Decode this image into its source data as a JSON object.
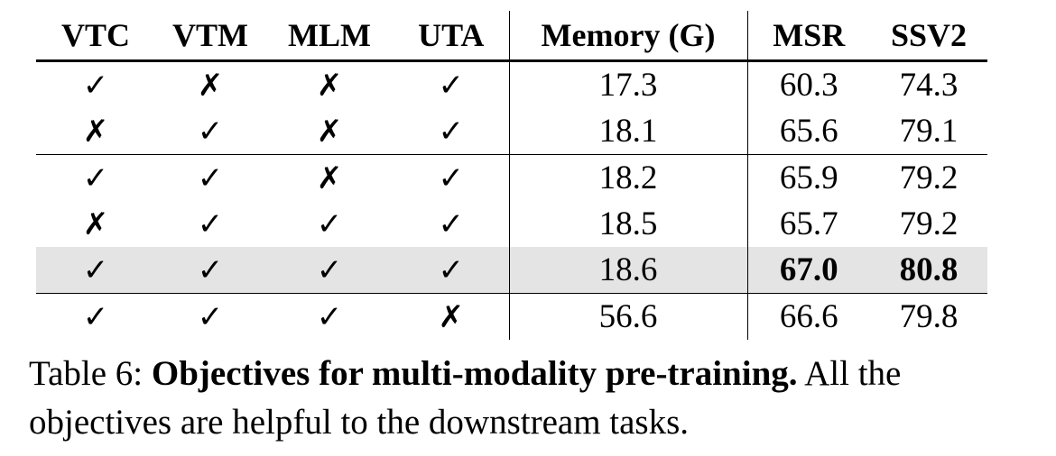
{
  "table": {
    "headers": [
      "VTC",
      "VTM",
      "MLM",
      "UTA",
      "Memory (G)",
      "MSR",
      "SSV2"
    ],
    "rows": [
      {
        "vtc": "✓",
        "vtm": "✗",
        "mlm": "✗",
        "uta": "✓",
        "memory": "17.3",
        "msr": "60.3",
        "ssv2": "74.3"
      },
      {
        "vtc": "✗",
        "vtm": "✓",
        "mlm": "✗",
        "uta": "✓",
        "memory": "18.1",
        "msr": "65.6",
        "ssv2": "79.1"
      },
      {
        "vtc": "✓",
        "vtm": "✓",
        "mlm": "✗",
        "uta": "✓",
        "memory": "18.2",
        "msr": "65.9",
        "ssv2": "79.2"
      },
      {
        "vtc": "✗",
        "vtm": "✓",
        "mlm": "✓",
        "uta": "✓",
        "memory": "18.5",
        "msr": "65.7",
        "ssv2": "79.2"
      },
      {
        "vtc": "✓",
        "vtm": "✓",
        "mlm": "✓",
        "uta": "✓",
        "memory": "18.6",
        "msr": "67.0",
        "ssv2": "80.8"
      },
      {
        "vtc": "✓",
        "vtm": "✓",
        "mlm": "✓",
        "uta": "✗",
        "memory": "56.6",
        "msr": "66.6",
        "ssv2": "79.8"
      }
    ],
    "highlight_color": "#e4e4e4"
  },
  "caption": {
    "label": "Table 6: ",
    "title": "Objectives for multi-modality pre-training.",
    "text": " All the objectives are helpful to the downstream tasks."
  }
}
